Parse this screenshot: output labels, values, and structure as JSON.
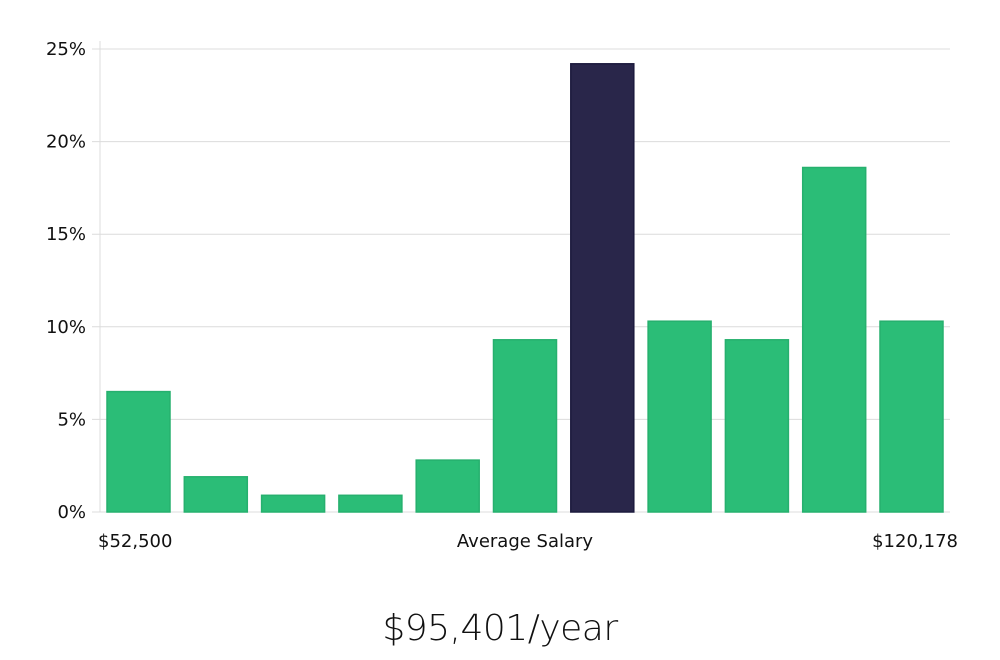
{
  "chart_data": {
    "type": "bar",
    "title": "",
    "xlabel": "Average Salary",
    "ylabel": "",
    "x_min_label": "$52,500",
    "x_max_label": "$120,178",
    "ylim": [
      0,
      25
    ],
    "yticks": [
      {
        "value": 0,
        "label": "0%"
      },
      {
        "value": 5,
        "label": "5%"
      },
      {
        "value": 10,
        "label": "10%"
      },
      {
        "value": 15,
        "label": "15%"
      },
      {
        "value": 20,
        "label": "20%"
      },
      {
        "value": 25,
        "label": "25%"
      }
    ],
    "grid": true,
    "bins": [
      {
        "value": 6.5,
        "highlight": false
      },
      {
        "value": 1.9,
        "highlight": false
      },
      {
        "value": 0.9,
        "highlight": false
      },
      {
        "value": 0.9,
        "highlight": false
      },
      {
        "value": 2.8,
        "highlight": false
      },
      {
        "value": 9.3,
        "highlight": false
      },
      {
        "value": 24.2,
        "highlight": true
      },
      {
        "value": 10.3,
        "highlight": false
      },
      {
        "value": 9.3,
        "highlight": false
      },
      {
        "value": 18.6,
        "highlight": false
      },
      {
        "value": 10.3,
        "highlight": false
      }
    ],
    "colors": {
      "bar": "#2bbd77",
      "highlight": "#29264a",
      "grid": "#dcdcdc"
    }
  },
  "footer": {
    "salary_text": "$95,401/year"
  }
}
